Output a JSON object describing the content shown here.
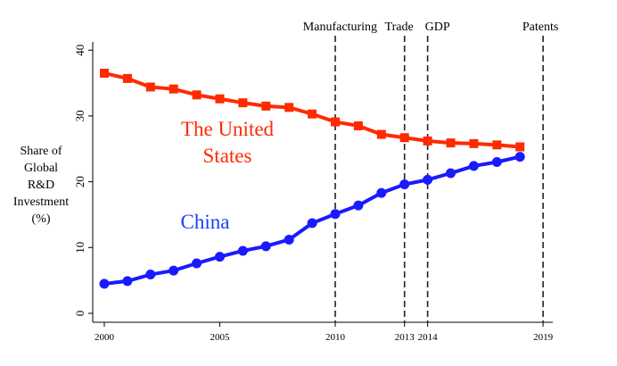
{
  "chart_data": {
    "type": "line",
    "title": "",
    "xlabel": "",
    "ylabel": "Share of Global R&D Investment (%)",
    "ylabel_lines": [
      "Share of",
      "Global",
      "R&D",
      "Investment",
      "(%)"
    ],
    "xlim": [
      2000,
      2019
    ],
    "ylim": [
      0,
      40
    ],
    "x_ticks": [
      2000,
      2005,
      2010,
      2013,
      2014,
      2019
    ],
    "y_ticks": [
      0,
      10,
      20,
      30,
      40
    ],
    "grid": false,
    "x": [
      2000,
      2001,
      2002,
      2003,
      2004,
      2005,
      2006,
      2007,
      2008,
      2009,
      2010,
      2011,
      2012,
      2013,
      2014,
      2015,
      2016,
      2017,
      2018
    ],
    "series": [
      {
        "name": "The United States",
        "label_lines": [
          "The United",
          "States"
        ],
        "color": "#ff2a00",
        "marker": "square",
        "values": [
          36.5,
          35.7,
          34.4,
          34.1,
          33.2,
          32.6,
          32.0,
          31.5,
          31.3,
          30.3,
          29.1,
          28.5,
          27.2,
          26.7,
          26.2,
          25.9,
          25.8,
          25.6,
          25.3
        ]
      },
      {
        "name": "China",
        "label_lines": [
          "China"
        ],
        "color": "#1a1aff",
        "marker": "circle",
        "values": [
          4.5,
          4.9,
          5.9,
          6.5,
          7.6,
          8.6,
          9.5,
          10.2,
          11.2,
          13.7,
          15.1,
          16.4,
          18.3,
          19.6,
          20.3,
          21.3,
          22.4,
          23.0,
          23.8
        ]
      }
    ],
    "annotations": [
      {
        "x": 2010,
        "label": "Manufacturing"
      },
      {
        "x": 2013,
        "label": "Trade"
      },
      {
        "x": 2014,
        "label": "GDP"
      },
      {
        "x": 2019,
        "label": "Patents"
      }
    ]
  }
}
